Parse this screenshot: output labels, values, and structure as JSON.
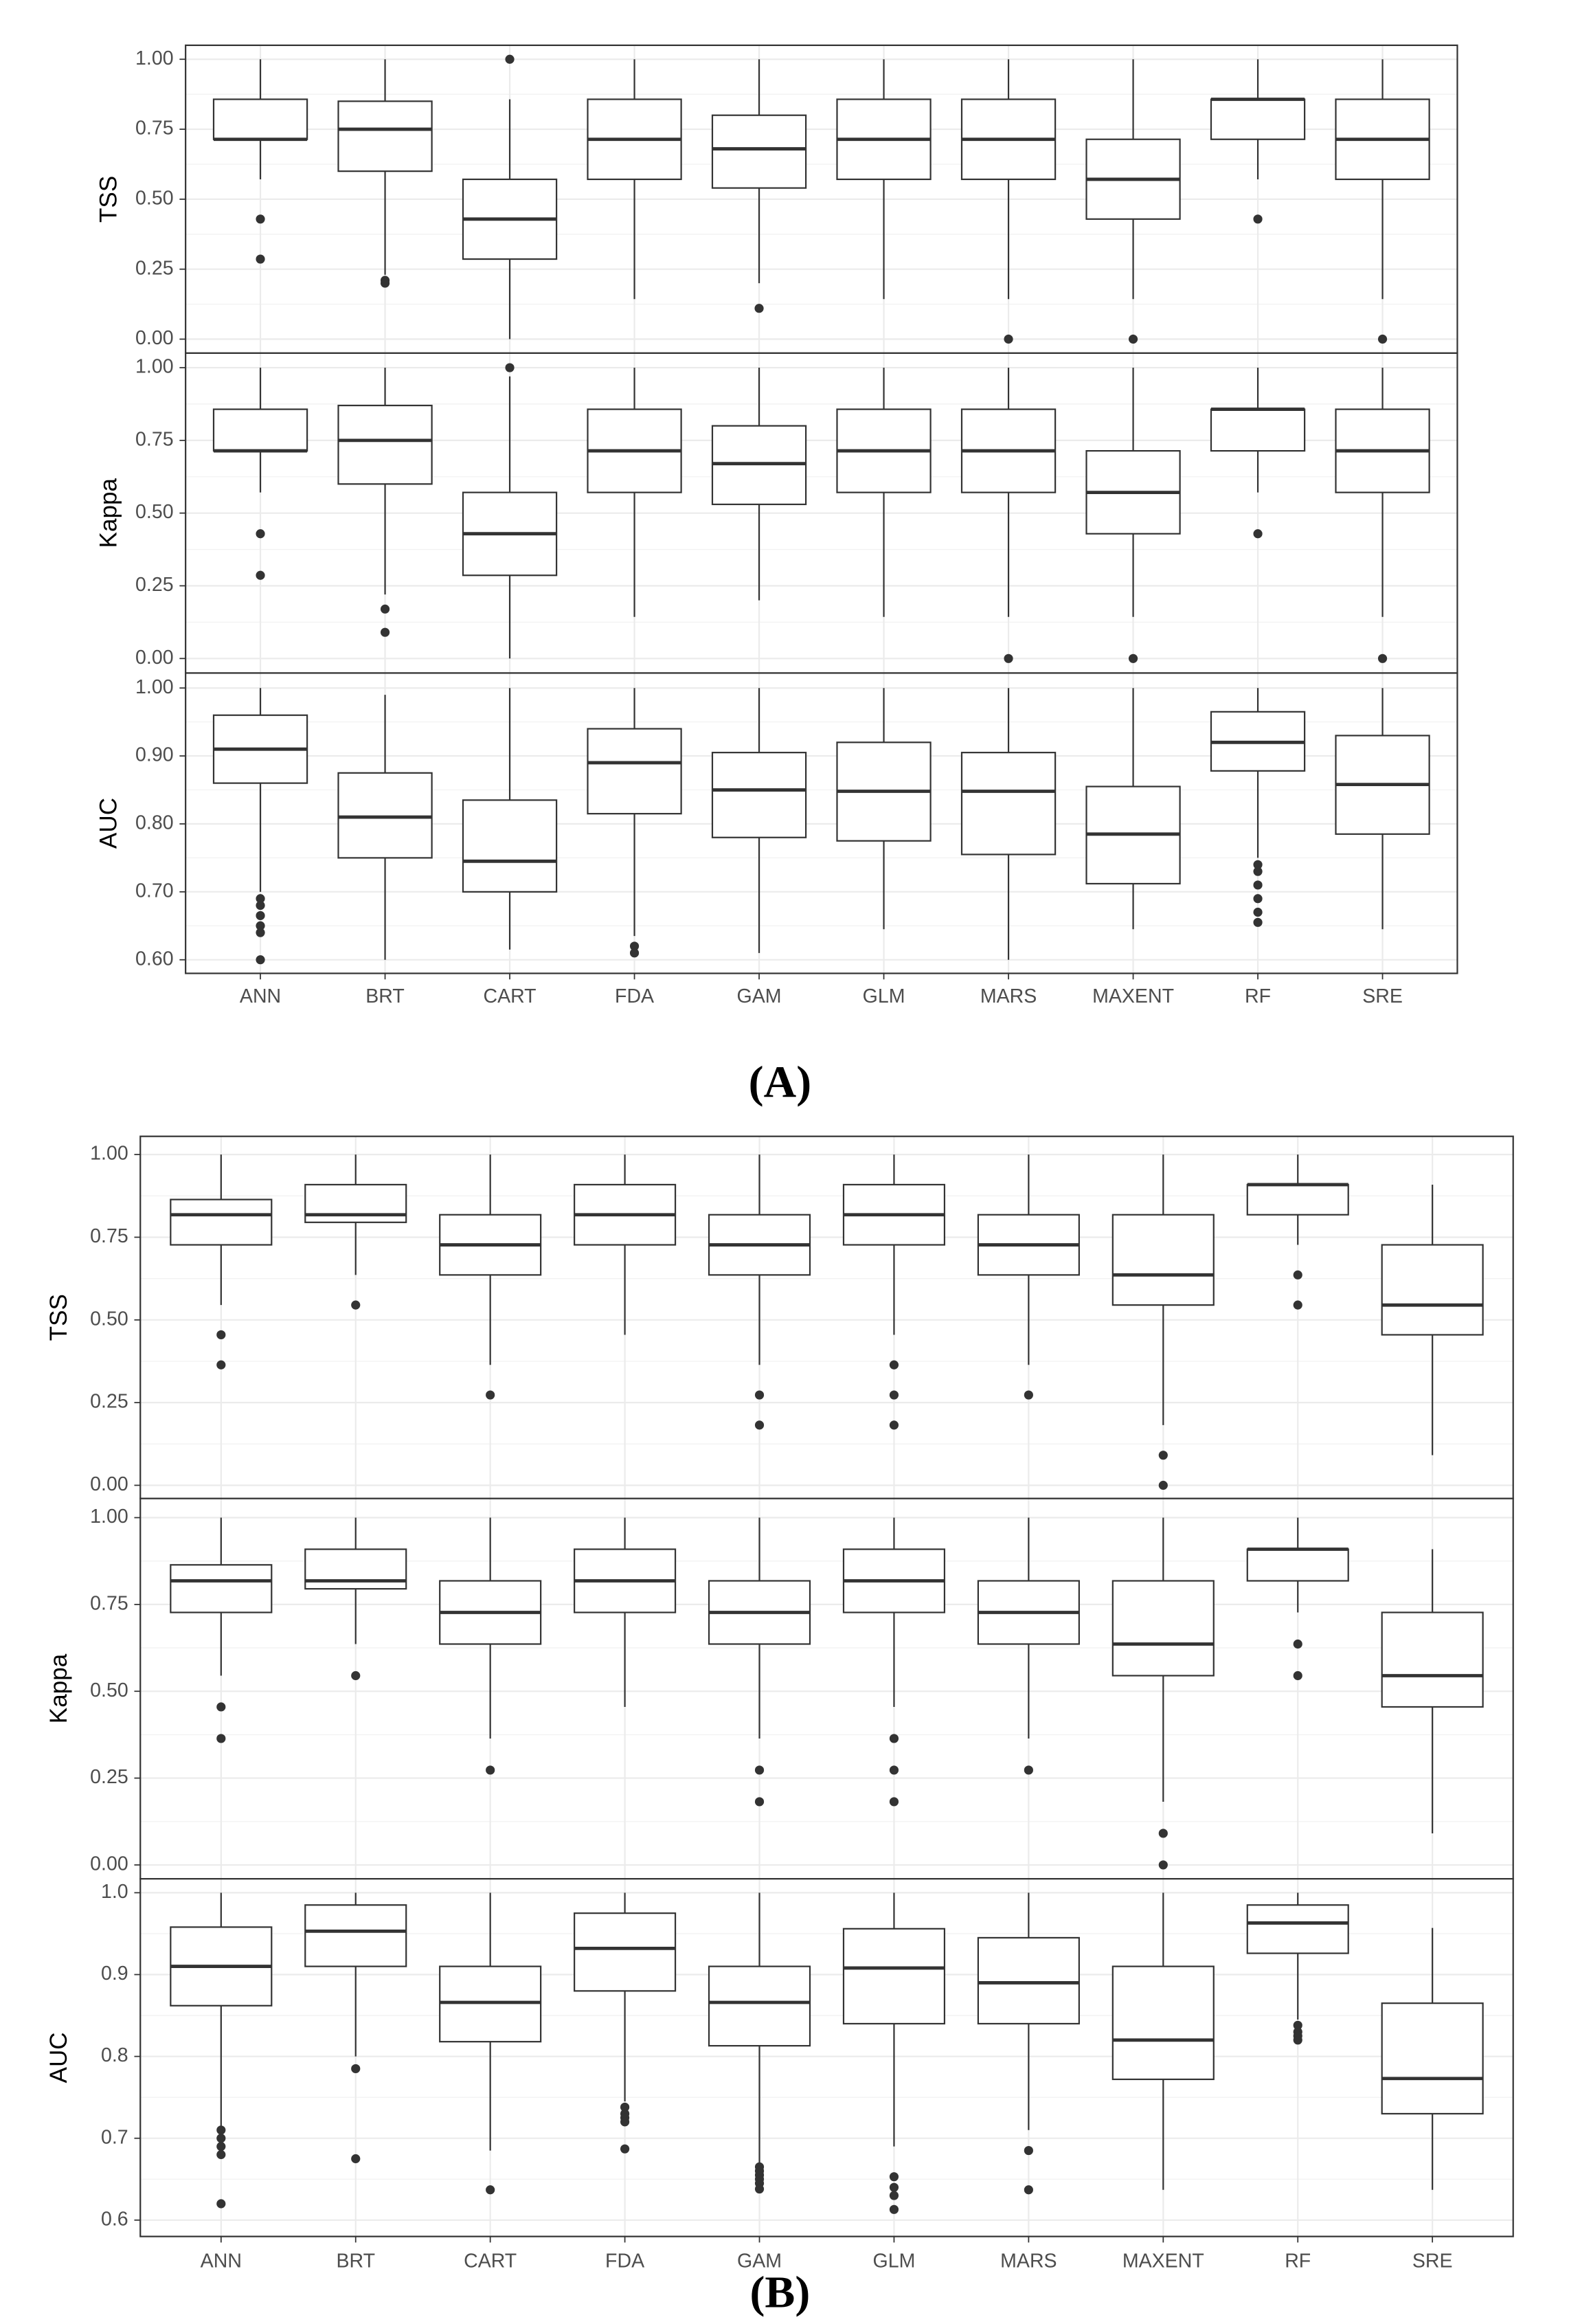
{
  "chart_data": [
    {
      "type": "box",
      "label": "(A)",
      "categories": [
        "ANN",
        "BRT",
        "CART",
        "FDA",
        "GAM",
        "GLM",
        "MARS",
        "MAXENT",
        "RF",
        "SRE"
      ],
      "facets": [
        {
          "ylabel": "TSS",
          "ylim": [
            -0.05,
            1.05
          ],
          "yticks": [
            {
              "value": 0,
              "label": "0.00"
            },
            0.25,
            {
              "value": 0.5,
              "label": "0.50"
            },
            0.75,
            {
              "value": 1,
              "label": "1.00"
            }
          ],
          "boxes": [
            {
              "low": 0.571,
              "q1": 0.714,
              "median": 0.714,
              "q3": 0.857,
              "high": 1,
              "outliers": [
                0.429,
                0.286
              ]
            },
            {
              "low": 0.23,
              "q1": 0.6,
              "median": 0.75,
              "q3": 0.85,
              "high": 1,
              "outliers": [
                0.21,
                0.2
              ]
            },
            {
              "low": 0,
              "q1": 0.286,
              "median": 0.429,
              "q3": 0.571,
              "high": 0.857,
              "outliers": [
                1
              ]
            },
            {
              "low": 0.143,
              "q1": 0.571,
              "median": 0.714,
              "q3": 0.857,
              "high": 1,
              "outliers": []
            },
            {
              "low": 0.2,
              "q1": 0.54,
              "median": 0.68,
              "q3": 0.8,
              "high": 1,
              "outliers": [
                0.11
              ]
            },
            {
              "low": 0.143,
              "q1": 0.571,
              "median": 0.714,
              "q3": 0.857,
              "high": 1,
              "outliers": []
            },
            {
              "low": 0.143,
              "q1": 0.571,
              "median": 0.714,
              "q3": 0.857,
              "high": 1,
              "outliers": [
                0
              ]
            },
            {
              "low": 0.143,
              "q1": 0.429,
              "median": 0.571,
              "q3": 0.714,
              "high": 1,
              "outliers": [
                0
              ]
            },
            {
              "low": 0.571,
              "q1": 0.714,
              "median": 0.857,
              "q3": 0.857,
              "high": 1,
              "outliers": [
                0.429
              ]
            },
            {
              "low": 0.143,
              "q1": 0.571,
              "median": 0.714,
              "q3": 0.857,
              "high": 1,
              "outliers": [
                0
              ]
            }
          ]
        },
        {
          "ylabel": "Kappa",
          "ylim": [
            -0.05,
            1.05
          ],
          "yticks": [
            {
              "value": 0,
              "label": "0.00"
            },
            0.25,
            {
              "value": 0.5,
              "label": "0.50"
            },
            0.75,
            {
              "value": 1,
              "label": "1.00"
            }
          ],
          "boxes": [
            {
              "low": 0.571,
              "q1": 0.714,
              "median": 0.714,
              "q3": 0.857,
              "high": 1,
              "outliers": [
                0.429,
                0.286
              ]
            },
            {
              "low": 0.22,
              "q1": 0.6,
              "median": 0.75,
              "q3": 0.87,
              "high": 1,
              "outliers": [
                0.17,
                0.09
              ]
            },
            {
              "low": 0,
              "q1": 0.286,
              "median": 0.429,
              "q3": 0.571,
              "high": 0.97,
              "outliers": [
                1
              ]
            },
            {
              "low": 0.143,
              "q1": 0.571,
              "median": 0.714,
              "q3": 0.857,
              "high": 1,
              "outliers": []
            },
            {
              "low": 0.2,
              "q1": 0.53,
              "median": 0.67,
              "q3": 0.8,
              "high": 1,
              "outliers": []
            },
            {
              "low": 0.143,
              "q1": 0.571,
              "median": 0.714,
              "q3": 0.857,
              "high": 1,
              "outliers": []
            },
            {
              "low": 0.143,
              "q1": 0.571,
              "median": 0.714,
              "q3": 0.857,
              "high": 1,
              "outliers": [
                0
              ]
            },
            {
              "low": 0.143,
              "q1": 0.429,
              "median": 0.571,
              "q3": 0.714,
              "high": 1,
              "outliers": [
                0
              ]
            },
            {
              "low": 0.571,
              "q1": 0.714,
              "median": 0.857,
              "q3": 0.857,
              "high": 1,
              "outliers": [
                0.429
              ]
            },
            {
              "low": 0.143,
              "q1": 0.571,
              "median": 0.714,
              "q3": 0.857,
              "high": 1,
              "outliers": [
                0
              ]
            }
          ]
        },
        {
          "ylabel": "AUC",
          "ylim": [
            0.58,
            1.022
          ],
          "yticks": [
            {
              "value": 0.6,
              "label": "0.60"
            },
            {
              "value": 0.7,
              "label": "0.70"
            },
            {
              "value": 0.8,
              "label": "0.80"
            },
            {
              "value": 0.9,
              "label": "0.90"
            },
            {
              "value": 1,
              "label": "1.00"
            }
          ],
          "boxes": [
            {
              "low": 0.7,
              "q1": 0.86,
              "median": 0.91,
              "q3": 0.96,
              "high": 1,
              "outliers": [
                0.69,
                0.68,
                0.665,
                0.65,
                0.64,
                0.6
              ]
            },
            {
              "low": 0.6,
              "q1": 0.75,
              "median": 0.81,
              "q3": 0.875,
              "high": 0.99,
              "outliers": []
            },
            {
              "low": 0.615,
              "q1": 0.7,
              "median": 0.745,
              "q3": 0.835,
              "high": 1,
              "outliers": []
            },
            {
              "low": 0.635,
              "q1": 0.815,
              "median": 0.89,
              "q3": 0.94,
              "high": 1,
              "outliers": [
                0.62,
                0.61
              ]
            },
            {
              "low": 0.61,
              "q1": 0.78,
              "median": 0.85,
              "q3": 0.905,
              "high": 1,
              "outliers": []
            },
            {
              "low": 0.645,
              "q1": 0.775,
              "median": 0.848,
              "q3": 0.92,
              "high": 1,
              "outliers": []
            },
            {
              "low": 0.6,
              "q1": 0.755,
              "median": 0.848,
              "q3": 0.905,
              "high": 1,
              "outliers": []
            },
            {
              "low": 0.645,
              "q1": 0.712,
              "median": 0.785,
              "q3": 0.855,
              "high": 1,
              "outliers": []
            },
            {
              "low": 0.75,
              "q1": 0.878,
              "median": 0.92,
              "q3": 0.965,
              "high": 1,
              "outliers": [
                0.74,
                0.73,
                0.71,
                0.69,
                0.67,
                0.655
              ]
            },
            {
              "low": 0.645,
              "q1": 0.785,
              "median": 0.858,
              "q3": 0.93,
              "high": 1,
              "outliers": []
            }
          ]
        }
      ]
    },
    {
      "type": "box",
      "label": "(B)",
      "categories": [
        "ANN",
        "BRT",
        "CART",
        "FDA",
        "GAM",
        "GLM",
        "MARS",
        "MAXENT",
        "RF",
        "SRE"
      ],
      "facets": [
        {
          "ylabel": "TSS",
          "ylim": [
            -0.04,
            1.055
          ],
          "yticks": [
            {
              "value": 0,
              "label": "0.00"
            },
            0.25,
            {
              "value": 0.5,
              "label": "0.50"
            },
            0.75,
            {
              "value": 1,
              "label": "1.00"
            }
          ],
          "boxes": [
            {
              "low": 0.545,
              "q1": 0.727,
              "median": 0.818,
              "q3": 0.864,
              "high": 1,
              "outliers": [
                0.455,
                0.364
              ]
            },
            {
              "low": 0.636,
              "q1": 0.795,
              "median": 0.818,
              "q3": 0.909,
              "high": 1,
              "outliers": [
                0.545
              ]
            },
            {
              "low": 0.364,
              "q1": 0.636,
              "median": 0.727,
              "q3": 0.818,
              "high": 1,
              "outliers": [
                0.273
              ]
            },
            {
              "low": 0.455,
              "q1": 0.727,
              "median": 0.818,
              "q3": 0.909,
              "high": 1,
              "outliers": []
            },
            {
              "low": 0.364,
              "q1": 0.636,
              "median": 0.727,
              "q3": 0.818,
              "high": 1,
              "outliers": [
                0.273,
                0.182
              ]
            },
            {
              "low": 0.455,
              "q1": 0.727,
              "median": 0.818,
              "q3": 0.909,
              "high": 1,
              "outliers": [
                0.364,
                0.273,
                0.182
              ]
            },
            {
              "low": 0.364,
              "q1": 0.636,
              "median": 0.727,
              "q3": 0.818,
              "high": 1,
              "outliers": [
                0.273
              ]
            },
            {
              "low": 0.182,
              "q1": 0.545,
              "median": 0.636,
              "q3": 0.818,
              "high": 1,
              "outliers": [
                0.091,
                0
              ]
            },
            {
              "low": 0.727,
              "q1": 0.818,
              "median": 0.909,
              "q3": 0.909,
              "high": 1,
              "outliers": [
                0.636,
                0.545
              ]
            },
            {
              "low": 0.091,
              "q1": 0.455,
              "median": 0.545,
              "q3": 0.727,
              "high": 0.909,
              "outliers": []
            }
          ]
        },
        {
          "ylabel": "Kappa",
          "ylim": [
            -0.04,
            1.055
          ],
          "yticks": [
            {
              "value": 0,
              "label": "0.00"
            },
            0.25,
            {
              "value": 0.5,
              "label": "0.50"
            },
            0.75,
            {
              "value": 1,
              "label": "1.00"
            }
          ],
          "boxes": [
            {
              "low": 0.545,
              "q1": 0.727,
              "median": 0.818,
              "q3": 0.864,
              "high": 1,
              "outliers": [
                0.455,
                0.364
              ]
            },
            {
              "low": 0.636,
              "q1": 0.795,
              "median": 0.818,
              "q3": 0.909,
              "high": 1,
              "outliers": [
                0.545
              ]
            },
            {
              "low": 0.364,
              "q1": 0.636,
              "median": 0.727,
              "q3": 0.818,
              "high": 1,
              "outliers": [
                0.273
              ]
            },
            {
              "low": 0.455,
              "q1": 0.727,
              "median": 0.818,
              "q3": 0.909,
              "high": 1,
              "outliers": []
            },
            {
              "low": 0.364,
              "q1": 0.636,
              "median": 0.727,
              "q3": 0.818,
              "high": 1,
              "outliers": [
                0.273,
                0.182
              ]
            },
            {
              "low": 0.455,
              "q1": 0.727,
              "median": 0.818,
              "q3": 0.909,
              "high": 1,
              "outliers": [
                0.364,
                0.273,
                0.182
              ]
            },
            {
              "low": 0.364,
              "q1": 0.636,
              "median": 0.727,
              "q3": 0.818,
              "high": 1,
              "outliers": [
                0.273
              ]
            },
            {
              "low": 0.182,
              "q1": 0.545,
              "median": 0.636,
              "q3": 0.818,
              "high": 1,
              "outliers": [
                0.091,
                0
              ]
            },
            {
              "low": 0.727,
              "q1": 0.818,
              "median": 0.909,
              "q3": 0.909,
              "high": 1,
              "outliers": [
                0.636,
                0.545
              ]
            },
            {
              "low": 0.091,
              "q1": 0.455,
              "median": 0.545,
              "q3": 0.727,
              "high": 0.909,
              "outliers": []
            }
          ]
        },
        {
          "ylabel": "AUC",
          "ylim": [
            0.58,
            1.017
          ],
          "yticks": [
            0.6,
            0.7,
            0.8,
            0.9,
            {
              "value": 1,
              "label": "1.0"
            }
          ],
          "boxes": [
            {
              "low": 0.715,
              "q1": 0.862,
              "median": 0.91,
              "q3": 0.958,
              "high": 1,
              "outliers": [
                0.71,
                0.7,
                0.69,
                0.68,
                0.62
              ]
            },
            {
              "low": 0.8,
              "q1": 0.91,
              "median": 0.953,
              "q3": 0.985,
              "high": 1,
              "outliers": [
                0.785,
                0.675
              ]
            },
            {
              "low": 0.685,
              "q1": 0.818,
              "median": 0.866,
              "q3": 0.91,
              "high": 1,
              "outliers": [
                0.637
              ]
            },
            {
              "low": 0.745,
              "q1": 0.88,
              "median": 0.932,
              "q3": 0.975,
              "high": 1,
              "outliers": [
                0.738,
                0.73,
                0.725,
                0.72,
                0.687
              ]
            },
            {
              "low": 0.67,
              "q1": 0.813,
              "median": 0.866,
              "q3": 0.91,
              "high": 1,
              "outliers": [
                0.665,
                0.66,
                0.655,
                0.65,
                0.645,
                0.638
              ]
            },
            {
              "low": 0.69,
              "q1": 0.84,
              "median": 0.908,
              "q3": 0.956,
              "high": 1,
              "outliers": [
                0.653,
                0.64,
                0.63,
                0.613
              ]
            },
            {
              "low": 0.71,
              "q1": 0.84,
              "median": 0.89,
              "q3": 0.945,
              "high": 1,
              "outliers": [
                0.685,
                0.637
              ]
            },
            {
              "low": 0.637,
              "q1": 0.772,
              "median": 0.82,
              "q3": 0.91,
              "high": 1,
              "outliers": []
            },
            {
              "low": 0.845,
              "q1": 0.926,
              "median": 0.963,
              "q3": 0.985,
              "high": 1,
              "outliers": [
                0.838,
                0.83,
                0.825,
                0.82
              ]
            },
            {
              "low": 0.637,
              "q1": 0.73,
              "median": 0.773,
              "q3": 0.865,
              "high": 0.957,
              "outliers": []
            }
          ]
        }
      ]
    }
  ]
}
